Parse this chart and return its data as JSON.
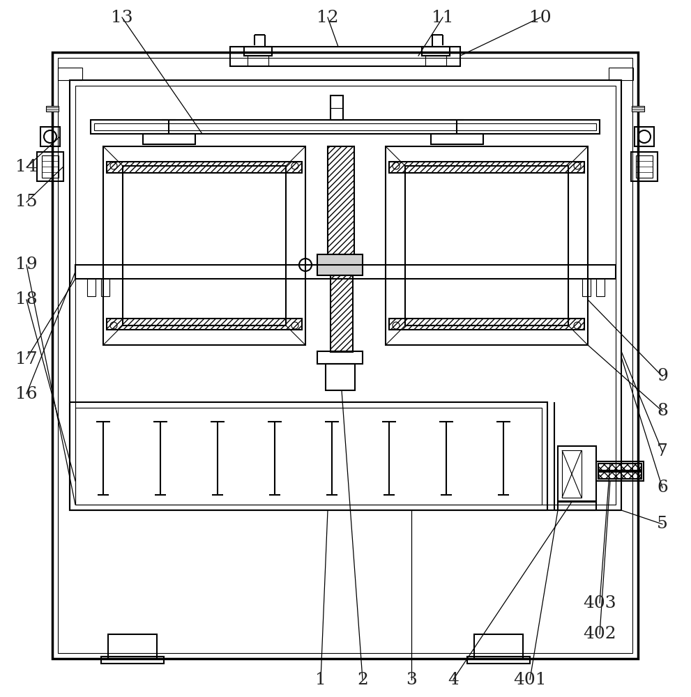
{
  "bg_color": "#ffffff",
  "line_color": "#000000",
  "figsize": [
    9.91,
    10.0
  ],
  "dpi": 100
}
